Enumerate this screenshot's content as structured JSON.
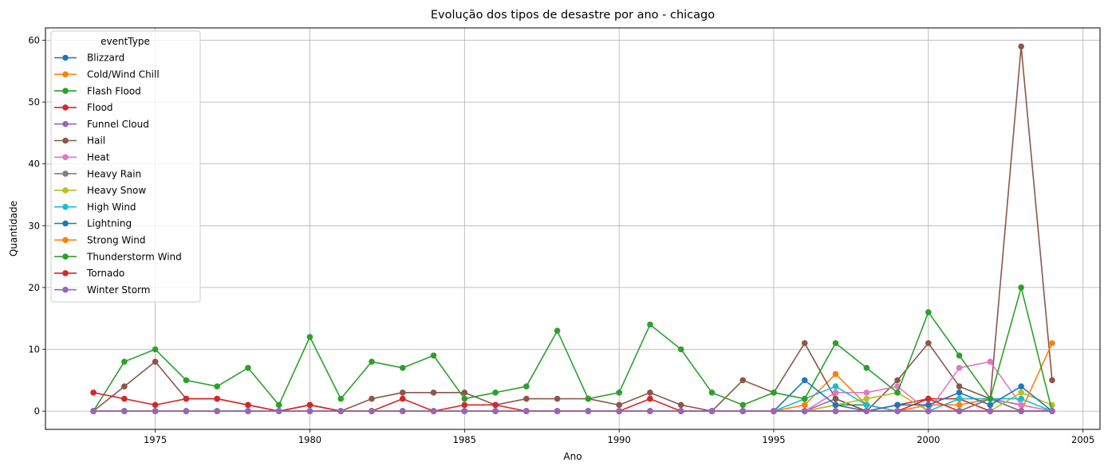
{
  "chart_data": {
    "type": "line",
    "title": "Evolução dos tipos de desastre por ano - chicago",
    "xlabel": "Ano",
    "ylabel": "Quantidade",
    "xlim": [
      1971.45,
      2005.55
    ],
    "ylim": [
      -2.95,
      62.0
    ],
    "xticks": [
      1975,
      1980,
      1985,
      1990,
      1995,
      2000,
      2005
    ],
    "yticks": [
      0,
      10,
      20,
      30,
      40,
      50,
      60
    ],
    "grid": true,
    "legend_title": "eventType",
    "legend_position": "top-left",
    "x": [
      1973,
      1974,
      1975,
      1976,
      1977,
      1978,
      1979,
      1980,
      1981,
      1982,
      1983,
      1984,
      1985,
      1986,
      1987,
      1988,
      1989,
      1990,
      1991,
      1992,
      1993,
      1994,
      1995,
      1996,
      1997,
      1998,
      1999,
      2000,
      2001,
      2002,
      2003,
      2004
    ],
    "series": [
      {
        "name": "Blizzard",
        "color": "#1f77b4",
        "values": [
          0,
          0,
          0,
          0,
          0,
          0,
          0,
          0,
          0,
          0,
          0,
          0,
          0,
          0,
          0,
          0,
          0,
          0,
          0,
          0,
          0,
          0,
          0,
          0,
          0,
          0,
          0,
          0,
          0,
          0,
          0,
          0
        ]
      },
      {
        "name": "Cold/Wind Chill",
        "color": "#ff7f0e",
        "values": [
          0,
          0,
          0,
          0,
          0,
          0,
          0,
          0,
          0,
          0,
          0,
          0,
          0,
          0,
          0,
          0,
          0,
          0,
          0,
          0,
          0,
          0,
          0,
          1,
          6,
          1,
          0,
          1,
          1,
          2,
          0,
          0
        ]
      },
      {
        "name": "Flash Flood",
        "color": "#2ca02c",
        "values": [
          0,
          0,
          0,
          0,
          0,
          0,
          0,
          0,
          0,
          0,
          0,
          0,
          0,
          0,
          0,
          0,
          0,
          0,
          0,
          0,
          0,
          0,
          0,
          0,
          1,
          1,
          0,
          0,
          0,
          2,
          0,
          0
        ]
      },
      {
        "name": "Flood",
        "color": "#d62728",
        "values": [
          0,
          0,
          0,
          0,
          0,
          0,
          0,
          1,
          0,
          0,
          0,
          0,
          0,
          0,
          0,
          0,
          0,
          0,
          0,
          0,
          0,
          0,
          0,
          0,
          0,
          0,
          1,
          2,
          2,
          0,
          0,
          0
        ]
      },
      {
        "name": "Funnel Cloud",
        "color": "#9467bd",
        "values": [
          0,
          0,
          0,
          0,
          0,
          0,
          0,
          0,
          0,
          0,
          0,
          0,
          0,
          0,
          0,
          0,
          0,
          0,
          0,
          0,
          0,
          0,
          0,
          0,
          2,
          0,
          0,
          0,
          0,
          2,
          1,
          0
        ]
      },
      {
        "name": "Hail",
        "color": "#8c564b",
        "values": [
          0,
          4,
          8,
          2,
          2,
          1,
          0,
          1,
          0,
          2,
          3,
          3,
          3,
          1,
          2,
          2,
          2,
          1,
          3,
          1,
          0,
          5,
          3,
          11,
          2,
          0,
          5,
          11,
          4,
          2,
          59,
          5
        ]
      },
      {
        "name": "Heat",
        "color": "#e377c2",
        "values": [
          0,
          0,
          0,
          0,
          0,
          0,
          0,
          0,
          0,
          0,
          0,
          0,
          0,
          0,
          0,
          0,
          0,
          0,
          0,
          0,
          0,
          0,
          0,
          0,
          3,
          3,
          4,
          0,
          7,
          8,
          1,
          0
        ]
      },
      {
        "name": "Heavy Rain",
        "color": "#7f7f7f",
        "values": [
          0,
          0,
          0,
          0,
          0,
          0,
          0,
          0,
          0,
          0,
          0,
          0,
          0,
          0,
          0,
          0,
          0,
          0,
          0,
          0,
          0,
          0,
          0,
          0,
          0,
          0,
          0,
          0,
          0,
          2,
          0,
          0
        ]
      },
      {
        "name": "Heavy Snow",
        "color": "#bcbd22",
        "values": [
          0,
          0,
          0,
          0,
          0,
          0,
          0,
          0,
          0,
          0,
          0,
          0,
          0,
          0,
          0,
          0,
          0,
          0,
          0,
          0,
          0,
          0,
          0,
          0,
          1,
          2,
          3,
          0,
          0,
          0,
          3,
          1
        ]
      },
      {
        "name": "High Wind",
        "color": "#17becf",
        "values": [
          0,
          0,
          0,
          0,
          0,
          0,
          0,
          0,
          0,
          0,
          0,
          0,
          0,
          0,
          0,
          0,
          0,
          0,
          0,
          0,
          0,
          0,
          0,
          2,
          4,
          1,
          0,
          0,
          2,
          2,
          2,
          0
        ]
      },
      {
        "name": "Lightning",
        "color": "#1f77b4",
        "values": [
          0,
          0,
          0,
          0,
          0,
          0,
          0,
          0,
          0,
          0,
          0,
          0,
          0,
          0,
          0,
          0,
          0,
          0,
          0,
          0,
          0,
          0,
          0,
          5,
          1,
          0,
          1,
          1,
          3,
          1,
          4,
          0
        ]
      },
      {
        "name": "Strong Wind",
        "color": "#ff7f0e",
        "values": [
          0,
          0,
          0,
          0,
          0,
          0,
          0,
          0,
          0,
          0,
          0,
          0,
          0,
          0,
          0,
          0,
          0,
          0,
          0,
          0,
          0,
          0,
          0,
          0,
          0,
          0,
          0,
          0,
          0,
          0,
          0,
          11
        ]
      },
      {
        "name": "Thunderstorm Wind",
        "color": "#2ca02c",
        "values": [
          0,
          8,
          10,
          5,
          4,
          7,
          1,
          12,
          2,
          8,
          7,
          9,
          2,
          3,
          4,
          13,
          2,
          3,
          14,
          10,
          3,
          1,
          3,
          2,
          11,
          7,
          3,
          16,
          9,
          2,
          20,
          0
        ]
      },
      {
        "name": "Tornado",
        "color": "#d62728",
        "values": [
          3,
          2,
          1,
          2,
          2,
          1,
          0,
          1,
          0,
          0,
          2,
          0,
          1,
          1,
          0,
          0,
          0,
          0,
          2,
          0,
          0,
          0,
          0,
          0,
          0,
          0,
          0,
          2,
          0,
          0,
          0,
          0
        ]
      },
      {
        "name": "Winter Storm",
        "color": "#9467bd",
        "values": [
          0,
          0,
          0,
          0,
          0,
          0,
          0,
          0,
          0,
          0,
          0,
          0,
          0,
          0,
          0,
          0,
          0,
          0,
          0,
          0,
          0,
          0,
          0,
          0,
          0,
          0,
          0,
          0,
          0,
          0,
          0,
          0
        ]
      }
    ]
  }
}
